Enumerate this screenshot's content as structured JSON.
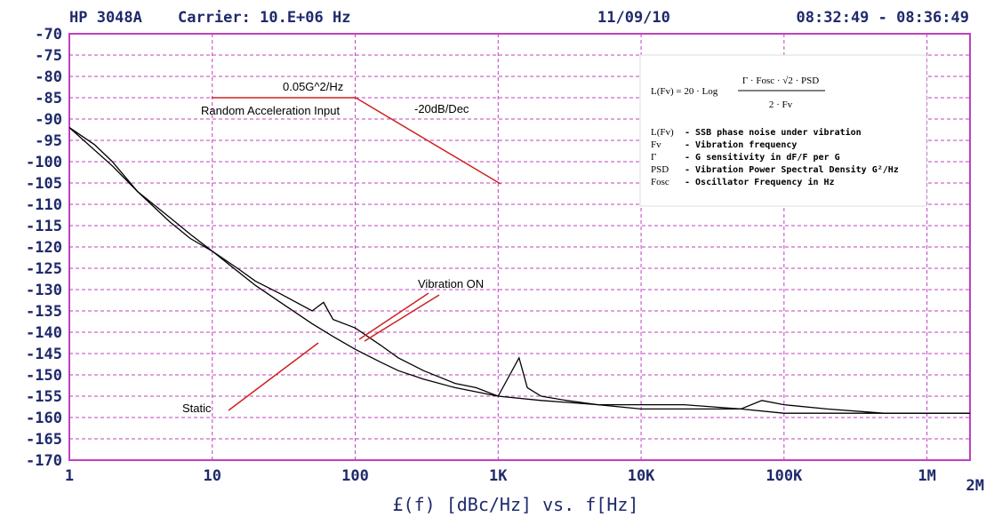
{
  "chart_data": {
    "type": "line",
    "header": [
      "HP 3048A",
      "Carrier: 10.E+06 Hz",
      "11/09/10",
      "08:32:49 - 08:36:49"
    ],
    "xlabel": "£(f) [dBc/Hz] vs. f[Hz]",
    "xscale": "log",
    "xlim": [
      1,
      2000000
    ],
    "xticks": [
      1,
      10,
      100,
      {
        "value": 1000,
        "label": "1K"
      },
      {
        "value": 10000,
        "label": "10K"
      },
      {
        "value": 100000,
        "label": "100K"
      },
      {
        "value": 1000000,
        "label": "1M"
      },
      {
        "value": 2000000,
        "label": "2M"
      }
    ],
    "ylim": [
      -170,
      -70
    ],
    "yticks": [
      -70,
      -75,
      -80,
      -85,
      -90,
      -95,
      -100,
      -105,
      -110,
      -115,
      -120,
      -125,
      -130,
      -135,
      -140,
      -145,
      -150,
      -155,
      -160,
      -165,
      -170
    ],
    "grid": true,
    "series": [
      {
        "name": "Vibration ON",
        "color": "#000000",
        "x": [
          1,
          1.5,
          2,
          3,
          5,
          7,
          10,
          15,
          20,
          30,
          50,
          60,
          70,
          100,
          150,
          200,
          300,
          500,
          700,
          1000,
          1400,
          1600,
          2000,
          3000,
          5000,
          10000,
          20000,
          50000,
          70000,
          100000,
          200000,
          500000,
          1000000,
          2000000
        ],
        "values": [
          -92,
          -96,
          -100,
          -107,
          -113,
          -117,
          -121,
          -125,
          -128,
          -131,
          -135,
          -133,
          -137,
          -139,
          -143,
          -146,
          -149,
          -152,
          -153,
          -155,
          -146,
          -153,
          -155,
          -156,
          -157,
          -157,
          -157,
          -158,
          -156,
          -157,
          -158,
          -159,
          -159,
          -159
        ]
      },
      {
        "name": "Static",
        "color": "#000000",
        "x": [
          1,
          2,
          3,
          5,
          7,
          10,
          20,
          30,
          50,
          70,
          100,
          150,
          200,
          300,
          500,
          1000,
          2000,
          5000,
          10000,
          20000,
          50000,
          100000,
          1000000,
          2000000
        ],
        "values": [
          -92,
          -101,
          -107,
          -114,
          -118,
          -121,
          -129,
          -133,
          -138,
          -141,
          -144,
          -147,
          -149,
          -151,
          -153,
          -155,
          -156,
          -157,
          -158,
          -158,
          -158,
          -159,
          -159,
          -159
        ]
      }
    ],
    "annotations": [
      "0.05G^2/Hz",
      "Random Acceleration Input",
      "-20dB/Dec"
    ],
    "formula": {
      "lhs": "L(Fv) = 20 · Log",
      "numerator": "Γ · Fosc · √2 · PSD",
      "denominator": "2 · Fv",
      "terms": [
        [
          "L(Fv)",
          "- SSB phase noise under vibration"
        ],
        [
          "Fv",
          "- Vibration frequency"
        ],
        [
          "Γ",
          "- G sensitivity in dF/F per G"
        ],
        [
          "PSD",
          "- Vibration Power Spectral Density G²/Hz"
        ],
        [
          "Fosc",
          "- Oscillator Frequency in Hz"
        ]
      ]
    }
  }
}
